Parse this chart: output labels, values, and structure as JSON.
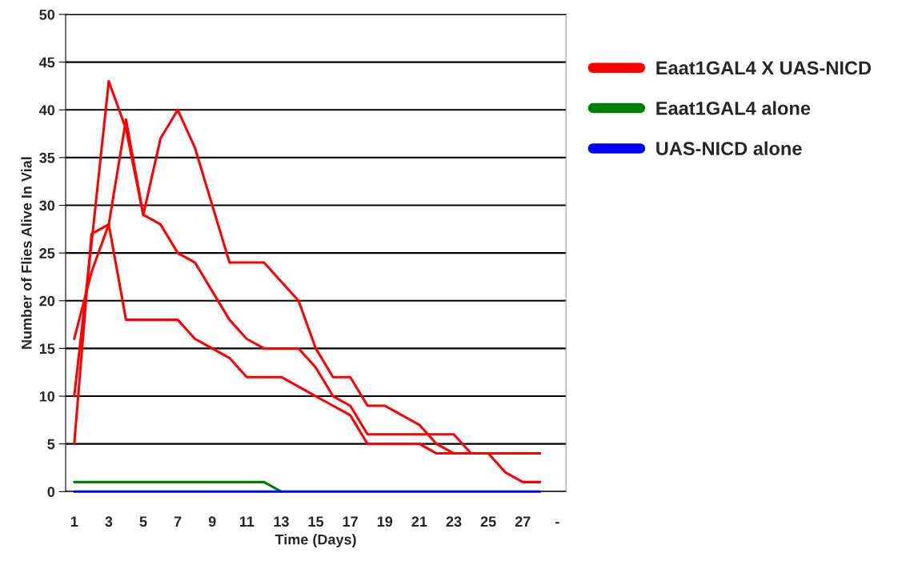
{
  "chart_data": {
    "type": "line",
    "xlabel": "Time (Days)",
    "ylabel": "Number of Flies Alive In Vial",
    "categories": [
      "1",
      null,
      "3",
      null,
      "5",
      null,
      "7",
      null,
      "9",
      null,
      "11",
      null,
      "13",
      null,
      "15",
      null,
      "17",
      null,
      "19",
      null,
      "21",
      null,
      "23",
      null,
      "25",
      null,
      "27",
      null,
      "-"
    ],
    "series": [
      {
        "name": "Eaat1GAL4 X UAS-NICD",
        "color": "#ff0000",
        "values": [
          10,
          26,
          43,
          38,
          29,
          28,
          25,
          24,
          21,
          18,
          16,
          15,
          15,
          15,
          13,
          10,
          9,
          6,
          6,
          6,
          6,
          6,
          6,
          4,
          4,
          4,
          4,
          4,
          null
        ]
      },
      {
        "color": "#ff0000",
        "values": [
          16,
          23,
          28,
          39,
          29,
          37,
          40,
          36,
          30,
          24,
          24,
          24,
          22,
          20,
          15,
          12,
          12,
          9,
          9,
          8,
          7,
          5,
          4,
          4,
          4,
          2,
          1,
          1,
          null
        ]
      },
      {
        "color": "#ff0000",
        "values": [
          5,
          27,
          28,
          18,
          18,
          18,
          18,
          16,
          15,
          14,
          12,
          12,
          12,
          11,
          10,
          9,
          8,
          5,
          5,
          5,
          5,
          4,
          4,
          4,
          4,
          4,
          4,
          4,
          null
        ]
      },
      {
        "name": "Eaat1GAL4 alone",
        "color": "#008000",
        "values": [
          1,
          1,
          1,
          1,
          1,
          1,
          1,
          1,
          1,
          1,
          1,
          1,
          0,
          null,
          null,
          null,
          null,
          null,
          null,
          null,
          null,
          null,
          null,
          null,
          null,
          null,
          null,
          null,
          null
        ]
      },
      {
        "name": "UAS-NICD alone",
        "color": "#0000ff",
        "values": [
          0,
          0,
          0,
          0,
          0,
          0,
          0,
          0,
          0,
          0,
          0,
          0,
          0,
          0,
          0,
          0,
          0,
          0,
          0,
          0,
          0,
          0,
          0,
          0,
          0,
          0,
          0,
          0,
          null
        ]
      }
    ],
    "ylim": [
      0,
      50
    ],
    "yticks": [
      0,
      5,
      10,
      15,
      20,
      25,
      30,
      35,
      40,
      45,
      50
    ],
    "grid": "y",
    "legend": "right",
    "marker": "none",
    "line_style": "solid"
  }
}
